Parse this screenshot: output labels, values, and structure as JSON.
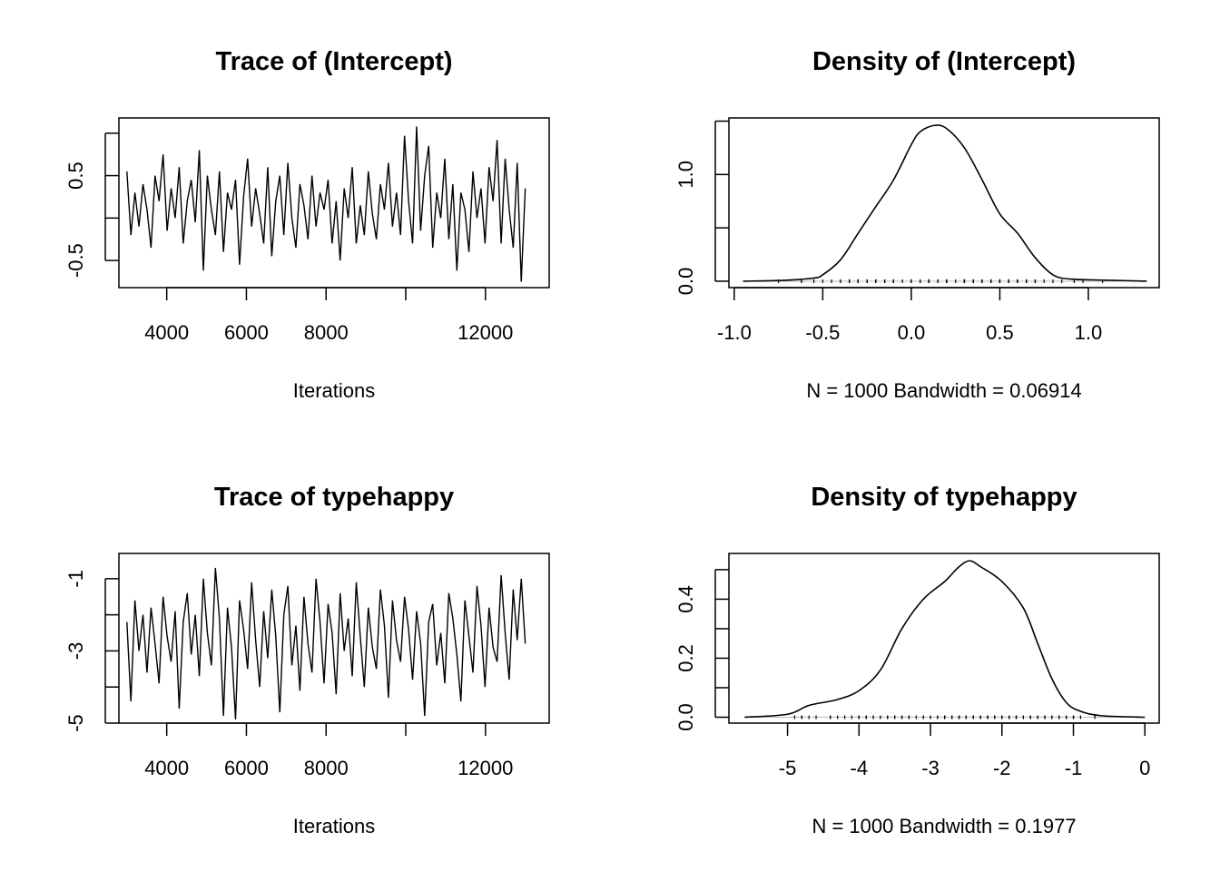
{
  "chart_data": [
    {
      "type": "line",
      "title": "Trace of (Intercept)",
      "xlabel": "Iterations",
      "ylabel": "",
      "xlim": [
        2800,
        13600
      ],
      "ylim": [
        -0.82,
        1.18
      ],
      "xticks": [
        4000,
        6000,
        8000,
        10000,
        12000
      ],
      "xtick_labels": [
        "4000",
        "6000",
        "8000",
        "",
        "12000"
      ],
      "yticks": [
        -0.5,
        0,
        0.5,
        1.0
      ],
      "ytick_labels": [
        "-0.5",
        "",
        "0.5",
        ""
      ],
      "x_range": [
        3000,
        13000
      ],
      "values": [
        0.55,
        -0.2,
        0.3,
        -0.1,
        0.4,
        0.1,
        -0.35,
        0.5,
        0.2,
        0.75,
        -0.15,
        0.35,
        0.0,
        0.6,
        -0.3,
        0.2,
        0.45,
        -0.05,
        0.8,
        -0.62,
        0.5,
        0.1,
        -0.2,
        0.55,
        -0.4,
        0.3,
        0.1,
        0.45,
        -0.55,
        0.25,
        0.7,
        -0.1,
        0.35,
        0.05,
        -0.3,
        0.6,
        -0.45,
        0.2,
        0.5,
        -0.2,
        0.65,
        0.0,
        -0.35,
        0.4,
        0.15,
        -0.25,
        0.5,
        -0.1,
        0.3,
        0.1,
        0.45,
        -0.3,
        0.2,
        -0.5,
        0.35,
        0.0,
        0.6,
        -0.3,
        0.15,
        -0.2,
        0.55,
        0.05,
        -0.25,
        0.4,
        0.1,
        0.65,
        -0.1,
        0.3,
        -0.2,
        0.97,
        0.2,
        -0.3,
        1.08,
        -0.15,
        0.5,
        0.85,
        -0.35,
        0.3,
        0.0,
        0.7,
        -0.25,
        0.4,
        -0.62,
        0.3,
        0.1,
        -0.4,
        0.55,
        0.0,
        0.35,
        -0.3,
        0.6,
        0.2,
        0.92,
        -0.3,
        0.7,
        0.1,
        -0.35,
        0.65,
        -0.75,
        0.35
      ]
    },
    {
      "type": "line",
      "title": "Density of (Intercept)",
      "xlabel": "N = 1000   Bandwidth = 0.06914",
      "ylabel": "",
      "xlim": [
        -1.03,
        1.4
      ],
      "ylim": [
        -0.06,
        1.53
      ],
      "xticks": [
        -1.0,
        -0.5,
        0.0,
        0.5,
        1.0
      ],
      "xtick_labels": [
        "-1.0",
        "-0.5",
        "0.0",
        "0.5",
        "1.0"
      ],
      "yticks": [
        0.0,
        0.5,
        1.0,
        1.5
      ],
      "ytick_labels": [
        "0.0",
        "",
        "1.0",
        ""
      ],
      "x": [
        -0.95,
        -0.7,
        -0.55,
        -0.5,
        -0.4,
        -0.3,
        -0.2,
        -0.1,
        0.0,
        0.05,
        0.13,
        0.2,
        0.3,
        0.4,
        0.5,
        0.6,
        0.7,
        0.8,
        0.9,
        1.1,
        1.33
      ],
      "y": [
        0,
        0.01,
        0.03,
        0.06,
        0.2,
        0.45,
        0.7,
        0.95,
        1.28,
        1.4,
        1.46,
        1.43,
        1.25,
        0.95,
        0.63,
        0.45,
        0.22,
        0.06,
        0.02,
        0.01,
        0
      ],
      "rug": "trace-0"
    },
    {
      "type": "line",
      "title": "Trace of typehappy",
      "xlabel": "Iterations",
      "ylabel": "",
      "xlim": [
        2800,
        13600
      ],
      "ylim": [
        -5.0,
        -0.3
      ],
      "xticks": [
        4000,
        6000,
        8000,
        10000,
        12000
      ],
      "xtick_labels": [
        "4000",
        "6000",
        "8000",
        "",
        "12000"
      ],
      "yticks": [
        -5,
        -4,
        -3,
        -2,
        -1
      ],
      "ytick_labels": [
        "-5",
        "",
        "-3",
        "",
        "-1"
      ],
      "x_range": [
        3000,
        13000
      ],
      "values": [
        -2.2,
        -4.4,
        -1.6,
        -3.0,
        -2.0,
        -3.6,
        -1.8,
        -2.8,
        -3.9,
        -1.5,
        -2.6,
        -3.3,
        -1.9,
        -4.6,
        -2.2,
        -1.4,
        -3.1,
        -2.0,
        -3.7,
        -1.0,
        -2.5,
        -3.4,
        -0.7,
        -2.1,
        -4.8,
        -1.8,
        -2.9,
        -4.9,
        -1.6,
        -2.4,
        -3.5,
        -1.1,
        -2.7,
        -4.0,
        -1.9,
        -3.2,
        -1.3,
        -2.6,
        -4.7,
        -2.0,
        -1.2,
        -3.4,
        -2.3,
        -4.1,
        -1.5,
        -2.8,
        -3.6,
        -1.0,
        -2.2,
        -3.9,
        -1.7,
        -2.5,
        -4.2,
        -1.4,
        -3.0,
        -2.1,
        -3.7,
        -1.1,
        -2.6,
        -4.0,
        -1.8,
        -2.9,
        -3.5,
        -1.3,
        -2.3,
        -4.3,
        -1.6,
        -2.7,
        -3.3,
        -1.5,
        -2.4,
        -3.8,
        -1.9,
        -2.8,
        -4.8,
        -2.2,
        -1.7,
        -3.4,
        -2.5,
        -3.9,
        -1.4,
        -2.1,
        -3.1,
        -4.4,
        -1.6,
        -2.6,
        -3.6,
        -1.2,
        -2.3,
        -4.0,
        -1.8,
        -2.9,
        -3.3,
        -0.9,
        -2.5,
        -3.8,
        -1.3,
        -2.7,
        -1.0,
        -2.8
      ]
    },
    {
      "type": "line",
      "title": "Density of typehappy",
      "xlabel": "N = 1000   Bandwidth = 0.1977",
      "ylabel": "",
      "xlim": [
        -5.82,
        0.2
      ],
      "ylim": [
        -0.02,
        0.555
      ],
      "xticks": [
        -5,
        -4,
        -3,
        -2,
        -1,
        0
      ],
      "xtick_labels": [
        "-5",
        "-4",
        "-3",
        "-2",
        "-1",
        "0"
      ],
      "yticks": [
        0.0,
        0.1,
        0.2,
        0.3,
        0.4,
        0.5
      ],
      "ytick_labels": [
        "0.0",
        "",
        "0.2",
        "",
        "0.4",
        ""
      ],
      "x": [
        -5.6,
        -5.0,
        -4.7,
        -4.3,
        -4.0,
        -3.7,
        -3.4,
        -3.1,
        -2.8,
        -2.6,
        -2.45,
        -2.3,
        -2.0,
        -1.7,
        -1.5,
        -1.3,
        -1.1,
        -0.9,
        -0.6,
        0
      ],
      "y": [
        0,
        0.01,
        0.04,
        0.06,
        0.09,
        0.16,
        0.3,
        0.4,
        0.46,
        0.51,
        0.53,
        0.51,
        0.46,
        0.37,
        0.25,
        0.13,
        0.05,
        0.02,
        0.005,
        0
      ],
      "rug": "trace-2"
    }
  ]
}
